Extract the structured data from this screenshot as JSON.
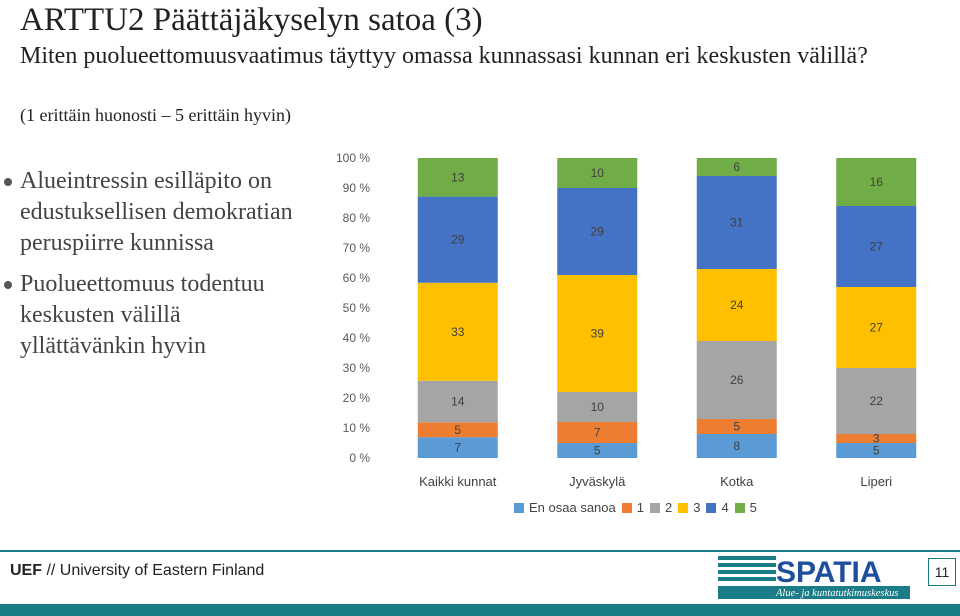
{
  "slide": {
    "title": "ARTTU2 Päättäjäkyselyn satoa (3)",
    "question": "Miten puolueettomuusvaatimus täyttyy omassa kunnassasi kunnan eri keskusten välillä?",
    "scale_note": "(1 erittäin huonosti – 5 erittäin hyvin)",
    "bullets": [
      "Alueintressin esilläpito on edustuksellisen demokratian peruspiirre kunnissa",
      "Puolueettomuus todentuu keskusten välillä yllättävänkin hyvin"
    ],
    "footer": {
      "org_abbr": "UEF",
      "org_name": "// University of Eastern Finland"
    },
    "logo": {
      "name": "SPATIA",
      "tagline": "Alue- ja kuntatutkimuskeskus"
    },
    "page_number": "11"
  },
  "chart_data": {
    "type": "bar",
    "stacked": "percent",
    "categories": [
      "Kaikki kunnat",
      "Jyväskylä",
      "Kotka",
      "Liperi"
    ],
    "series": [
      {
        "name": "En osaa sanoa",
        "color": "#5b9bd5",
        "values": [
          7,
          5,
          8,
          5
        ]
      },
      {
        "name": "1",
        "color": "#ed7d31",
        "values": [
          5,
          7,
          5,
          3
        ]
      },
      {
        "name": "2",
        "color": "#a5a5a5",
        "values": [
          14,
          10,
          26,
          22
        ]
      },
      {
        "name": "3",
        "color": "#ffc000",
        "values": [
          33,
          39,
          24,
          27
        ]
      },
      {
        "name": "4",
        "color": "#4472c4",
        "values": [
          29,
          29,
          31,
          27
        ]
      },
      {
        "name": "5",
        "color": "#70ad47",
        "values": [
          13,
          10,
          6,
          16
        ]
      }
    ],
    "y_ticks": [
      "0 %",
      "10 %",
      "20 %",
      "30 %",
      "40 %",
      "50 %",
      "60 %",
      "70 %",
      "80 %",
      "90 %",
      "100 %"
    ],
    "ylim": [
      0,
      100
    ],
    "legend_position": "bottom",
    "grid": false,
    "data_labels": true
  }
}
